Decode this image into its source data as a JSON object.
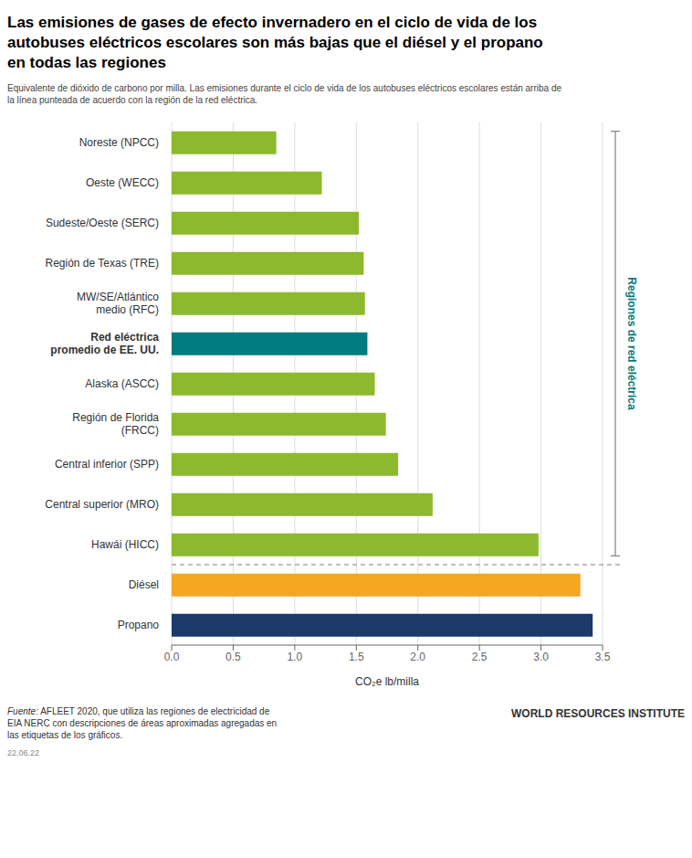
{
  "chart_data": {
    "type": "bar",
    "orientation": "horizontal",
    "title": "Las emisiones de gases de efecto invernadero en el ciclo de vida de los\nautobuses eléctricos escolares son más bajas que el diésel y el propano\nen todas las regiones",
    "subtitle": "Equivalente de dióxido de carbono por milla. Las emisiones durante el ciclo de vida de los autobuses eléctricos escolares están arriba de\nla línea punteada de acuerdo con la región de la red eléctrica.",
    "xlabel": "CO₂e lb/milla",
    "categories": [
      "Propano",
      "Diésel",
      "Hawái (HICC)",
      "Central superior (MRO)",
      "Central inferior (SPP)",
      "Región de Florida\n(FRCC)",
      "Alaska (ASCC)",
      "Red eléctrica\npromedio de EE. UU.",
      "MW/SE/Atlántico\nmedio (RFC)",
      "Región de Texas (TRE)",
      "Sudeste/Oeste (SERC)",
      "Oeste (WECC)",
      "Noreste (NPCC)"
    ],
    "values": [
      3.42,
      3.32,
      2.98,
      2.12,
      1.84,
      1.74,
      1.65,
      1.59,
      1.57,
      1.56,
      1.52,
      1.22,
      0.85
    ],
    "colors": [
      "#1a3a6b",
      "#f5a623",
      "#8db92e",
      "#8db92e",
      "#8db92e",
      "#8db92e",
      "#8db92e",
      "#007b7f",
      "#8db92e",
      "#8db92e",
      "#8db92e",
      "#8db92e",
      "#8db92e"
    ],
    "xlim": [
      0,
      3.5
    ],
    "xticks": [
      {
        "value": 0,
        "label": "0.0"
      },
      0.5,
      {
        "value": 1,
        "label": "1.0"
      },
      1.5,
      {
        "value": 2,
        "label": "2.0"
      },
      2.5,
      {
        "value": 3,
        "label": "3.0"
      },
      3.5
    ],
    "grid": true,
    "annotations": [
      {
        "text": "Regiones de red eléctrica",
        "color": "#007b7f"
      },
      {
        "text": "Fuente: AFLEET 2020, que utiliza las regiones de electricidad de\nEIA NERC con descripciones de áreas aproximadas agregadas en\nlas etiquetas de los gráficos."
      },
      {
        "text": "22.06.22"
      },
      {
        "text": "WORLD RESOURCES INSTITUTE"
      }
    ]
  }
}
